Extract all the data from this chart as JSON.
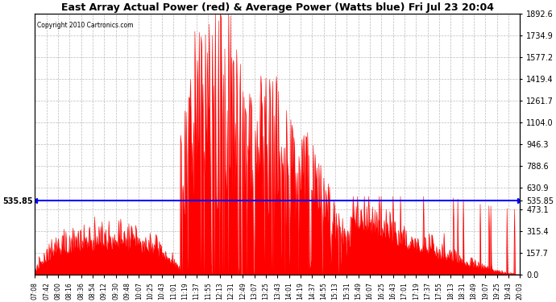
{
  "title": "East Array Actual Power (red) & Average Power (Watts blue) Fri Jul 23 20:04",
  "copyright": "Copyright 2010 Cartronics.com",
  "avg_power": 535.85,
  "y_max": 1892.6,
  "y_min": 0.0,
  "y_ticks_right": [
    0.0,
    157.7,
    315.4,
    473.1,
    630.9,
    788.6,
    946.3,
    1104.0,
    1261.7,
    1419.4,
    1577.2,
    1734.9,
    1892.6
  ],
  "background_color": "#ffffff",
  "grid_color": "#bbbbbb",
  "fill_color": "#ff0000",
  "line_color": "#0000ff",
  "x_tick_labels": [
    "07:08",
    "07:42",
    "08:00",
    "08:16",
    "08:36",
    "08:54",
    "09:12",
    "09:30",
    "09:48",
    "10:07",
    "10:25",
    "10:43",
    "11:01",
    "11:19",
    "11:37",
    "11:55",
    "12:13",
    "12:31",
    "12:49",
    "13:07",
    "13:25",
    "13:43",
    "14:01",
    "14:19",
    "14:37",
    "14:55",
    "15:13",
    "15:31",
    "15:49",
    "16:07",
    "16:25",
    "16:43",
    "17:01",
    "17:19",
    "17:37",
    "17:55",
    "18:13",
    "18:31",
    "18:49",
    "19:07",
    "19:25",
    "19:43",
    "20:03"
  ]
}
